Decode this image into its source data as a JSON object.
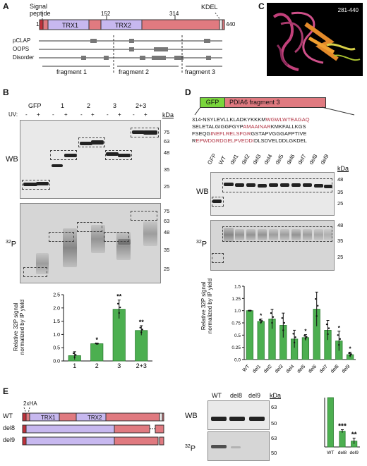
{
  "panels": {
    "A": {
      "label": "A",
      "signal_peptide_label": "Signal\npeptide",
      "kdel_label": "KDEL",
      "pos_start": "1",
      "pos_152": "152",
      "pos_314": "314",
      "pos_end": "440",
      "domain_trx1": "TRX1",
      "domain_trx2": "TRX2",
      "tracks": [
        "pCLAP",
        "OOPS",
        "Disorder"
      ],
      "fragments": [
        "fragment 1",
        "fragment 2",
        "fragment 3"
      ]
    },
    "B": {
      "label": "B",
      "lanes_header": [
        "GFP",
        "1",
        "2",
        "3",
        "2+3"
      ],
      "uv_label": "UV:",
      "uv_signs": [
        "-",
        "+",
        "-",
        "+",
        "-",
        "+",
        "-",
        "+",
        "-",
        "+"
      ],
      "wb_label": "WB",
      "p32_label": "32P",
      "kda_label": "kDa",
      "kda_wb": [
        "75",
        "63",
        "48",
        "35",
        "25"
      ],
      "kda_p32": [
        "75",
        "63",
        "48",
        "35",
        "25"
      ],
      "chart_ylabel": "Relative 32P signal\nnormalized by IP yield",
      "significance": [
        "",
        "*",
        "**",
        "**"
      ]
    },
    "C": {
      "label": "C",
      "structure_label": "281-440"
    },
    "D": {
      "label": "D",
      "construct_gfp": "GFP",
      "construct_frag": "PDIA6 fragment 3",
      "seq_start": "314-",
      "seq_lines": [
        [
          [
            "NSYLEVLLKLADKYKKKM",
            ""
          ],
          [
            "WGWLWTEAGAQ",
            "red"
          ]
        ],
        [
          [
            "SELETALGIGGFGYP",
            ""
          ],
          [
            "AMAAINAR",
            "red"
          ],
          [
            "KMKFALLKGS",
            ""
          ]
        ],
        [
          [
            "FSEQG",
            ""
          ],
          [
            "INEFLRELSFGR",
            "red"
          ],
          [
            "GSTAPVGGGAFPTIVE",
            ""
          ]
        ],
        [
          [
            "R",
            ""
          ],
          [
            "EPWDGRDGELPVEDDI",
            "red"
          ],
          [
            "DLSDVELDDLGKDEL",
            ""
          ]
        ]
      ],
      "lanes": [
        "GFP",
        "WT",
        "del1",
        "del2",
        "del3",
        "del4",
        "del5",
        "del6",
        "del7",
        "del8",
        "del9"
      ],
      "wb_label": "WB",
      "p32_label": "32P",
      "kda_label": "kDa",
      "kda_wb": [
        "48",
        "35",
        "25"
      ],
      "kda_p32": [
        "48",
        "35",
        "25"
      ],
      "chart_ylabel": "Relative 32P signal\nnormalized by IP yield",
      "significance": [
        "",
        "*",
        "",
        "",
        "",
        "*",
        "",
        "",
        "*",
        "*"
      ]
    },
    "E": {
      "label": "E",
      "tag_label": "2xHA",
      "rows": [
        "WT",
        "del8",
        "del9"
      ],
      "domain_trx1": "TRX1",
      "domain_trx2": "TRX2",
      "blot_lanes": [
        "WT",
        "del8",
        "del9"
      ],
      "wb_label": "WB",
      "p32_label": "32P",
      "kda_label": "kDa",
      "kda_wb": [
        "63",
        "50"
      ],
      "kda_p32": [
        "63",
        "50"
      ],
      "significance": [
        "",
        "***",
        "**"
      ]
    }
  },
  "chart_data": [
    {
      "type": "bar",
      "panel": "B",
      "categories": [
        "1",
        "2",
        "3",
        "2+3"
      ],
      "values": [
        0.2,
        0.65,
        1.95,
        1.15
      ],
      "errors": [
        0.15,
        0.02,
        0.35,
        0.18
      ],
      "ylabel": "Relative 32P signal normalized by IP yield",
      "ylim": [
        0,
        2.5
      ],
      "yticks": [
        "0.0",
        "0.5",
        "1.0",
        "1.5",
        "2.0",
        "2.5"
      ],
      "color": "#4caf50"
    },
    {
      "type": "bar",
      "panel": "D",
      "categories": [
        "WT",
        "del1",
        "del2",
        "del3",
        "del4",
        "del5",
        "del6",
        "del7",
        "del8",
        "del9"
      ],
      "values": [
        1.0,
        0.78,
        0.83,
        0.7,
        0.42,
        0.45,
        1.03,
        0.6,
        0.38,
        0.1
      ],
      "errors": [
        0.0,
        0.05,
        0.2,
        0.25,
        0.18,
        0.06,
        0.35,
        0.2,
        0.2,
        0.05
      ],
      "ylabel": "Relative 32P signal normalized by IP yield",
      "ylim": [
        0,
        1.5
      ],
      "yticks": [
        "0.0",
        "0.25",
        "0.5",
        "0.75",
        "1.0",
        "1.25",
        "1.5"
      ],
      "color": "#4caf50"
    },
    {
      "type": "bar",
      "panel": "E",
      "categories": [
        "WT",
        "del8",
        "del9"
      ],
      "values": [
        1.0,
        0.32,
        0.12
      ],
      "errors": [
        0.0,
        0.03,
        0.06
      ],
      "ylim": [
        0,
        1.0
      ],
      "color": "#4caf50"
    }
  ]
}
